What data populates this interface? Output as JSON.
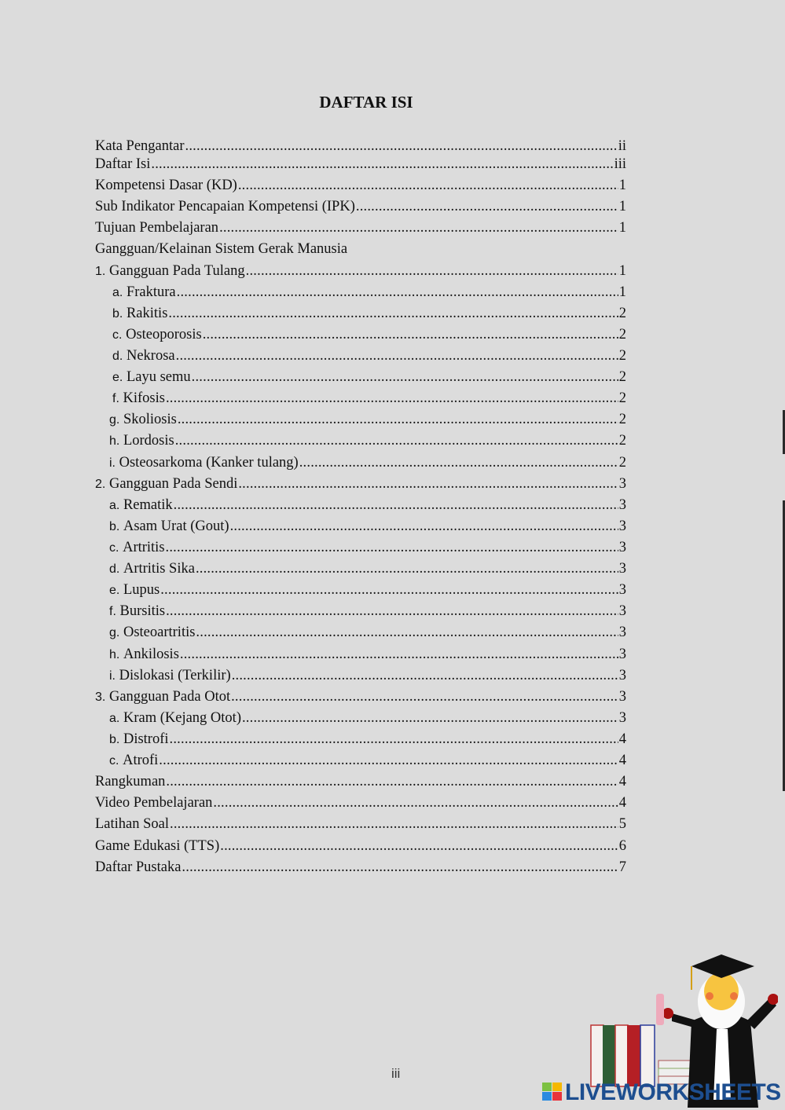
{
  "title": "DAFTAR ISI",
  "entries": [
    {
      "label": "Kata Pengantar",
      "page": "ii",
      "level": 0
    },
    {
      "label": "Daftar Isi",
      "page": "iii",
      "level": 0
    },
    {
      "label": "Kompetensi Dasar (KD)",
      "page": "1",
      "level": 0
    },
    {
      "label": "Sub Indikator Pencapaian Kompetensi (IPK)",
      "page": "1",
      "level": 0
    },
    {
      "label": "Tujuan Pembelajaran",
      "page": "1",
      "level": 0
    },
    {
      "label": "Gangguan/Kelainan Sistem Gerak Manusia",
      "page": "",
      "level": 0
    },
    {
      "num": "1.",
      "label": "Gangguan Pada Tulang",
      "page": "1",
      "level": 0
    },
    {
      "num": "a.",
      "label": "Fraktura",
      "page": "1",
      "level": 1
    },
    {
      "num": "b.",
      "label": "Rakitis",
      "page": "2",
      "level": 1
    },
    {
      "num": "c.",
      "label": "Osteoporosis",
      "page": "2",
      "level": 1
    },
    {
      "num": "d.",
      "label": "Nekrosa",
      "page": "2",
      "level": 1
    },
    {
      "num": "e.",
      "label": "Layu semu",
      "page": "2",
      "level": 1
    },
    {
      "num": "f.",
      "label": "Kifosis",
      "page": "2",
      "level": 1
    },
    {
      "num": "g.",
      "label": "Skoliosis",
      "page": "2",
      "level": 2
    },
    {
      "num": "h.",
      "label": "Lordosis",
      "page": "2",
      "level": 2
    },
    {
      "num": "i.",
      "label": "Osteosarkoma (Kanker tulang)",
      "page": "2",
      "level": 2
    },
    {
      "num": "2.",
      "label": "Gangguan Pada Sendi",
      "page": "3",
      "level": 0
    },
    {
      "num": "a.",
      "label": "Rematik",
      "page": "3",
      "level": 2
    },
    {
      "num": "b.",
      "label": "Asam Urat (Gout)",
      "page": "3",
      "level": 2
    },
    {
      "num": "c.",
      "label": "Artritis",
      "page": "3",
      "level": 2
    },
    {
      "num": "d.",
      "label": "Artritis Sika",
      "page": "3",
      "level": 2
    },
    {
      "num": "e.",
      "label": "Lupus",
      "page": "3",
      "level": 2
    },
    {
      "num": "f.",
      "label": "Bursitis",
      "page": "3",
      "level": 2
    },
    {
      "num": "g.",
      "label": "Osteoartritis",
      "page": "3",
      "level": 2
    },
    {
      "num": "h.",
      "label": "Ankilosis",
      "page": "3",
      "level": 2
    },
    {
      "num": "i.",
      "label": "Dislokasi (Terkilir)",
      "page": "3",
      "level": 2
    },
    {
      "num": "3.",
      "label": "Gangguan Pada Otot",
      "page": "3",
      "level": 0
    },
    {
      "num": "a.",
      "label": "Kram (Kejang Otot)",
      "page": "3",
      "level": 2
    },
    {
      "num": "b.",
      "label": "Distrofi",
      "page": "4",
      "level": 2
    },
    {
      "num": "c.",
      "label": "Atrofi",
      "page": "4",
      "level": 2
    },
    {
      "label": "Rangkuman",
      "page": "4",
      "level": 0
    },
    {
      "label": "Video Pembelajaran",
      "page": "4",
      "level": 0
    },
    {
      "label": "Latihan Soal",
      "page": "5",
      "level": 0
    },
    {
      "label": "Game Edukasi (TTS)",
      "page": "6",
      "level": 0
    },
    {
      "label": "Daftar Pustaka",
      "page": "7",
      "level": 0
    }
  ],
  "page_number": "iii",
  "watermark": "LIVEWORKSHEETS"
}
